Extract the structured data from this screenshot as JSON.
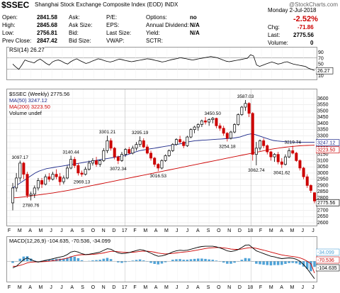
{
  "header": {
    "symbol": "$SSEC",
    "name": "Shanghai Stock Exchange Composite Index (EOD) INDX",
    "brand": "@StockCharts.com",
    "date": "Monday  2-Jul-2018",
    "change_pct": "-2.52%",
    "quote": [
      {
        "label": "Open:",
        "value": "2841.58"
      },
      {
        "label": "High:",
        "value": "2845.68"
      },
      {
        "label": "Low:",
        "value": "2756.81"
      },
      {
        "label": "Prev Close:",
        "value": "2847.42"
      },
      {
        "label": "Ask:",
        "value": ""
      },
      {
        "label": "Ask Size:",
        "value": ""
      },
      {
        "label": "Bid:",
        "value": ""
      },
      {
        "label": "Bid Size:",
        "value": ""
      },
      {
        "label": "P/E:",
        "value": ""
      },
      {
        "label": "EPS:",
        "value": ""
      },
      {
        "label": "Last Size:",
        "value": ""
      },
      {
        "label": "VWAP:",
        "value": ""
      },
      {
        "label": "Options:",
        "value": "no"
      },
      {
        "label": "Annual Dividend:",
        "value": "N/A"
      },
      {
        "label": "Yield:",
        "value": "N/A"
      },
      {
        "label": "SCTR:",
        "value": ""
      },
      {
        "label": "Chg:",
        "value": "-71.86"
      },
      {
        "label": "Last:",
        "value": "2775.56"
      },
      {
        "label": "Volume:",
        "value": "0"
      }
    ]
  },
  "colors": {
    "up": "#000000",
    "down": "#cc0000",
    "ma50": "#1e2a8a",
    "ma200": "#cc0000",
    "macd_hist": "#4fa3d8",
    "accent": "#cc0000"
  },
  "chart_data": [
    {
      "type": "line",
      "title": "RSI(14) 26.27",
      "legend": [
        "RSI(14) 26.27"
      ],
      "y_ticks": [
        90,
        70,
        50,
        30,
        10
      ],
      "ylim": [
        0,
        100
      ],
      "reference_lines": [
        70,
        30
      ],
      "last_value_label": "26.27",
      "series": [
        {
          "name": "RSI(14)",
          "values": [
            48,
            38,
            30,
            45,
            62,
            58,
            55,
            52,
            60,
            65,
            58,
            50,
            45,
            55,
            60,
            62,
            58,
            52,
            48,
            56,
            62,
            66,
            60,
            55,
            50,
            53,
            58,
            62,
            66,
            64,
            60,
            57,
            55,
            58,
            62,
            65,
            63,
            60,
            58,
            56,
            58,
            60,
            62,
            64,
            66,
            65,
            63,
            60,
            58,
            55,
            57,
            60,
            63,
            65,
            67,
            70,
            68,
            66,
            64,
            62,
            64,
            66,
            68,
            70,
            72,
            74,
            72,
            70,
            66,
            62,
            58,
            56,
            58,
            60,
            62,
            64,
            66,
            68,
            80,
            76,
            45,
            40,
            44,
            48,
            52,
            55,
            52,
            48,
            50,
            54,
            56,
            52,
            48,
            46,
            44,
            42,
            40,
            34,
            30,
            26
          ]
        }
      ]
    },
    {
      "type": "candlestick",
      "title": "$SSEC (Weekly) 2775.56",
      "legend": [
        "$SSEC (Weekly) 2775.56",
        "MA(50) 3247.12",
        "MA(200) 3223.50",
        "Volume undef"
      ],
      "x_month_ticks": [
        "F",
        "M",
        "A",
        "M",
        "J",
        "J",
        "A",
        "S",
        "O",
        "N",
        "D",
        "17",
        "F",
        "M",
        "A",
        "M",
        "J",
        "J",
        "A",
        "S",
        "O",
        "N",
        "D",
        "18",
        "F",
        "M",
        "A",
        "M",
        "J",
        "J"
      ],
      "y_ticks": [
        3600,
        3550,
        3500,
        3450,
        3400,
        3350,
        3300,
        3250,
        3200,
        3150,
        3100,
        3050,
        3000,
        2950,
        2900,
        2850,
        2800,
        2750,
        2700,
        2650,
        2600
      ],
      "ylim": [
        2600,
        3650
      ],
      "annotations": [
        {
          "text": "3097.17",
          "value": 3097.17
        },
        {
          "text": "2780.76",
          "value": 2780.76
        },
        {
          "text": "3140.44",
          "value": 3140.44
        },
        {
          "text": "2969.13",
          "value": 2969.13
        },
        {
          "text": "3301.21",
          "value": 3301.21
        },
        {
          "text": "3072.34",
          "value": 3072.34
        },
        {
          "text": "3295.19",
          "value": 3295.19
        },
        {
          "text": "3016.53",
          "value": 3016.53
        },
        {
          "text": "3450.50",
          "value": 3450.5
        },
        {
          "text": "3587.03",
          "value": 3587.03
        },
        {
          "text": "3254.18",
          "value": 3254.18
        },
        {
          "text": "3062.74",
          "value": 3062.74
        },
        {
          "text": "3219.74",
          "value": 3219.74
        },
        {
          "text": "3041.62",
          "value": 3041.62
        }
      ],
      "right_labels": [
        {
          "text": "3247.12",
          "value": 3247.12
        },
        {
          "text": "3223.50",
          "value": 3223.5
        },
        {
          "text": "2775.56",
          "value": 2775.56
        }
      ],
      "candles": [
        [
          2760,
          2920,
          2700,
          2880
        ],
        [
          2880,
          3000,
          2850,
          2960
        ],
        [
          2960,
          3100,
          2930,
          3080
        ],
        [
          3080,
          3090,
          2950,
          2990
        ],
        [
          2990,
          3010,
          2800,
          2820
        ],
        [
          2820,
          2850,
          2780,
          2830
        ],
        [
          2830,
          2900,
          2800,
          2880
        ],
        [
          2880,
          2960,
          2860,
          2940
        ],
        [
          2940,
          2960,
          2880,
          2910
        ],
        [
          2910,
          2990,
          2900,
          2970
        ],
        [
          2970,
          3000,
          2930,
          2950
        ],
        [
          2950,
          3010,
          2940,
          2990
        ],
        [
          2990,
          3030,
          2950,
          2970
        ],
        [
          2970,
          3000,
          2900,
          2930
        ],
        [
          2930,
          2980,
          2910,
          2960
        ],
        [
          2960,
          3060,
          2950,
          3040
        ],
        [
          3040,
          3140,
          3030,
          3110
        ],
        [
          3110,
          3130,
          3040,
          3060
        ],
        [
          3060,
          3080,
          2980,
          3000
        ],
        [
          3000,
          3020,
          2970,
          2990
        ],
        [
          2990,
          3050,
          2980,
          3030
        ],
        [
          3030,
          3100,
          3020,
          3080
        ],
        [
          3080,
          3120,
          3060,
          3100
        ],
        [
          3100,
          3130,
          3050,
          3070
        ],
        [
          3070,
          3110,
          3050,
          3100
        ],
        [
          3100,
          3200,
          3090,
          3180
        ],
        [
          3180,
          3301,
          3160,
          3260
        ],
        [
          3260,
          3280,
          3180,
          3200
        ],
        [
          3200,
          3210,
          3110,
          3130
        ],
        [
          3130,
          3140,
          3072,
          3100
        ],
        [
          3100,
          3170,
          3090,
          3150
        ],
        [
          3150,
          3200,
          3130,
          3190
        ],
        [
          3190,
          3210,
          3150,
          3160
        ],
        [
          3160,
          3220,
          3150,
          3200
        ],
        [
          3200,
          3250,
          3180,
          3230
        ],
        [
          3230,
          3295,
          3210,
          3260
        ],
        [
          3260,
          3280,
          3200,
          3210
        ],
        [
          3210,
          3230,
          3150,
          3160
        ],
        [
          3160,
          3180,
          3100,
          3120
        ],
        [
          3120,
          3130,
          3050,
          3070
        ],
        [
          3070,
          3080,
          3016,
          3040
        ],
        [
          3040,
          3110,
          3030,
          3100
        ],
        [
          3100,
          3150,
          3090,
          3140
        ],
        [
          3140,
          3190,
          3130,
          3180
        ],
        [
          3180,
          3240,
          3170,
          3230
        ],
        [
          3230,
          3280,
          3220,
          3270
        ],
        [
          3270,
          3300,
          3240,
          3250
        ],
        [
          3250,
          3260,
          3200,
          3220
        ],
        [
          3220,
          3300,
          3210,
          3290
        ],
        [
          3290,
          3360,
          3280,
          3350
        ],
        [
          3350,
          3380,
          3320,
          3370
        ],
        [
          3370,
          3400,
          3340,
          3390
        ],
        [
          3390,
          3430,
          3370,
          3420
        ],
        [
          3420,
          3450,
          3390,
          3410
        ],
        [
          3410,
          3440,
          3380,
          3430
        ],
        [
          3430,
          3450.5,
          3400,
          3440
        ],
        [
          3440,
          3445,
          3360,
          3380
        ],
        [
          3380,
          3400,
          3340,
          3360
        ],
        [
          3360,
          3380,
          3300,
          3320
        ],
        [
          3320,
          3330,
          3254,
          3280
        ],
        [
          3280,
          3340,
          3270,
          3330
        ],
        [
          3330,
          3400,
          3320,
          3390
        ],
        [
          3390,
          3480,
          3380,
          3470
        ],
        [
          3470,
          3540,
          3460,
          3530
        ],
        [
          3530,
          3587,
          3500,
          3560
        ],
        [
          3560,
          3570,
          3450,
          3480
        ],
        [
          3480,
          3490,
          3100,
          3150
        ],
        [
          3150,
          3250,
          3062,
          3200
        ],
        [
          3200,
          3270,
          3180,
          3260
        ],
        [
          3260,
          3280,
          3200,
          3220
        ],
        [
          3220,
          3230,
          3150,
          3170
        ],
        [
          3170,
          3180,
          3100,
          3130
        ],
        [
          3130,
          3160,
          3090,
          3150
        ],
        [
          3150,
          3170,
          3070,
          3090
        ],
        [
          3090,
          3120,
          3041,
          3070
        ],
        [
          3070,
          3150,
          3060,
          3130
        ],
        [
          3130,
          3200,
          3120,
          3180
        ],
        [
          3180,
          3219.7,
          3150,
          3160
        ],
        [
          3160,
          3170,
          3090,
          3100
        ],
        [
          3100,
          3110,
          3020,
          3040
        ],
        [
          3040,
          3050,
          2950,
          2970
        ],
        [
          2970,
          2990,
          2880,
          2900
        ],
        [
          2900,
          2910,
          2840,
          2860
        ],
        [
          2841.6,
          2845.7,
          2756.8,
          2775.6
        ]
      ],
      "ma50": [
        2880,
        2900,
        2920,
        2940,
        2960,
        2980,
        3000,
        3015,
        3025,
        3035,
        3040,
        3045,
        3050,
        3055,
        3060,
        3065,
        3070,
        3075,
        3080,
        3085,
        3090,
        3095,
        3100,
        3105,
        3110,
        3115,
        3120,
        3125,
        3130,
        3135,
        3140,
        3150,
        3160,
        3170,
        3180,
        3185,
        3190,
        3195,
        3200,
        3205,
        3210,
        3215,
        3220,
        3225,
        3230,
        3235,
        3240,
        3250,
        3255,
        3260,
        3262,
        3264,
        3266,
        3268,
        3270,
        3272,
        3274,
        3276,
        3278,
        3280,
        3285,
        3290,
        3300,
        3310,
        3315,
        3310,
        3300,
        3290,
        3280,
        3270,
        3262,
        3258,
        3255,
        3252,
        3250,
        3249,
        3248,
        3247,
        3247,
        3247,
        3247,
        3247.12
      ],
      "ma200": [
        2800,
        2802,
        2805,
        2808,
        2812,
        2816,
        2820,
        2824,
        2828,
        2832,
        2836,
        2840,
        2845,
        2850,
        2855,
        2860,
        2866,
        2872,
        2878,
        2884,
        2890,
        2896,
        2902,
        2908,
        2914,
        2920,
        2926,
        2932,
        2938,
        2944,
        2950,
        2956,
        2962,
        2968,
        2974,
        2980,
        2986,
        2992,
        2998,
        3004,
        3010,
        3016,
        3022,
        3028,
        3034,
        3040,
        3046,
        3052,
        3058,
        3064,
        3070,
        3076,
        3082,
        3088,
        3094,
        3100,
        3106,
        3112,
        3118,
        3124,
        3130,
        3136,
        3142,
        3148,
        3154,
        3160,
        3166,
        3172,
        3178,
        3184,
        3190,
        3195,
        3200,
        3204,
        3208,
        3211,
        3214,
        3217,
        3219,
        3221,
        3222,
        3223,
        3223.5
      ]
    },
    {
      "type": "line",
      "title": "MACD(12,26,9) -104.635, -70.536, -34.099",
      "legend": [
        "MACD(12,26,9) -104.635, -70.536, -34.099"
      ],
      "last_value_labels": [
        "-34.099",
        "-70.536",
        "-104.635"
      ],
      "series": [
        {
          "name": "MACD",
          "values": [
            -40,
            -30,
            -10,
            10,
            20,
            10,
            0,
            -5,
            0,
            5,
            10,
            15,
            20,
            25,
            30,
            40,
            55,
            60,
            55,
            45,
            40,
            42,
            46,
            50,
            55,
            65,
            75,
            72,
            60,
            50,
            45,
            48,
            52,
            58,
            64,
            70,
            66,
            58,
            48,
            38,
            30,
            32,
            38,
            46,
            56,
            62,
            66,
            64,
            66,
            72,
            78,
            84,
            88,
            90,
            90,
            90,
            86,
            80,
            72,
            62,
            58,
            62,
            70,
            82,
            96,
            98,
            80,
            62,
            54,
            46,
            38,
            30,
            26,
            20,
            16,
            18,
            20,
            18,
            12,
            0,
            -20,
            -45,
            -75,
            -104.635
          ]
        },
        {
          "name": "Signal",
          "values": [
            -30,
            -30,
            -25,
            -18,
            -10,
            -6,
            -4,
            -4,
            -3,
            -2,
            0,
            3,
            6,
            10,
            14,
            19,
            26,
            33,
            37,
            39,
            39,
            40,
            41,
            43,
            46,
            50,
            55,
            59,
            59,
            57,
            55,
            53,
            53,
            54,
            56,
            59,
            61,
            60,
            58,
            54,
            49,
            46,
            44,
            45,
            47,
            50,
            53,
            55,
            57,
            60,
            64,
            68,
            72,
            76,
            79,
            81,
            82,
            82,
            80,
            77,
            73,
            71,
            71,
            73,
            77,
            81,
            81,
            77,
            72,
            67,
            61,
            55,
            49,
            43,
            38,
            34,
            31,
            28,
            25,
            20,
            12,
            0,
            -15,
            -70.536
          ]
        }
      ],
      "histogram": [
        -10,
        0,
        15,
        28,
        30,
        16,
        4,
        -1,
        3,
        7,
        10,
        12,
        14,
        15,
        16,
        21,
        29,
        27,
        18,
        6,
        1,
        2,
        5,
        7,
        9,
        15,
        20,
        13,
        1,
        -7,
        -10,
        -5,
        -1,
        4,
        8,
        11,
        5,
        -2,
        -10,
        -16,
        -19,
        -14,
        -6,
        1,
        9,
        12,
        13,
        9,
        9,
        12,
        14,
        16,
        16,
        14,
        11,
        9,
        4,
        -2,
        -8,
        -15,
        -15,
        -9,
        -1,
        9,
        19,
        17,
        -1,
        -15,
        -18,
        -21,
        -23,
        -25,
        -23,
        -23,
        -22,
        -16,
        -11,
        -10,
        -13,
        -20,
        -32,
        -45,
        -60,
        -34.099
      ],
      "zero_line": 0
    }
  ]
}
